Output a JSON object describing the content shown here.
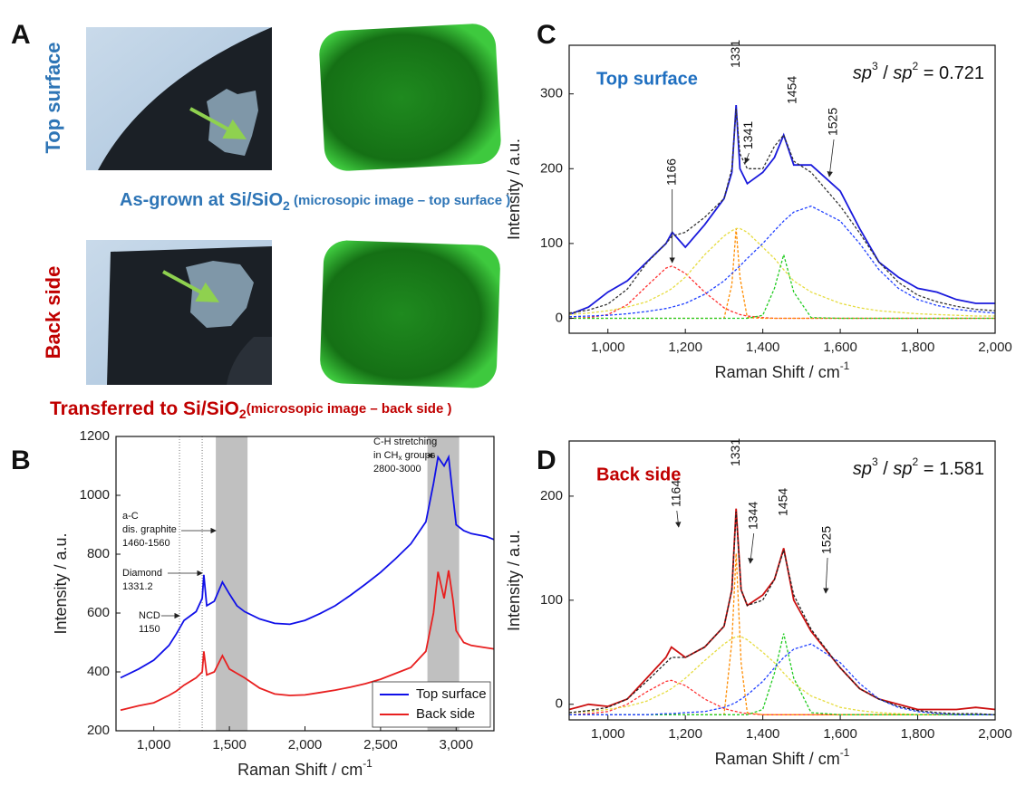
{
  "panel_a": {
    "letter": "A",
    "top_side_label": "Top surface",
    "top_caption": [
      "As-grown at Si/SiO",
      "2",
      " (microsopic image – top surface )"
    ],
    "back_side_label": "Back side",
    "back_caption": [
      "Transferred to Si/SiO",
      "2",
      "(microsopic image – back side )"
    ]
  },
  "chart_data": [
    {
      "type": "line",
      "panel": "B",
      "x_label": [
        "Raman Shift / cm",
        "-1"
      ],
      "y_label": "Intensity / a.u.",
      "x": [
        780,
        900,
        1000,
        1100,
        1150,
        1200,
        1280,
        1320,
        1331,
        1350,
        1400,
        1454,
        1500,
        1550,
        1600,
        1700,
        1800,
        1900,
        2000,
        2100,
        2200,
        2300,
        2400,
        2500,
        2600,
        2700,
        2800,
        2850,
        2880,
        2920,
        2950,
        2980,
        3000,
        3050,
        3100,
        3200,
        3250
      ],
      "series": [
        {
          "name": "Top surface",
          "color": "#1010e8",
          "style": "solid",
          "values": [
            380,
            410,
            440,
            490,
            530,
            575,
            605,
            650,
            730,
            625,
            640,
            705,
            665,
            625,
            605,
            580,
            565,
            562,
            575,
            598,
            625,
            660,
            698,
            738,
            785,
            835,
            910,
            1040,
            1130,
            1100,
            1130,
            990,
            900,
            880,
            870,
            860,
            850
          ]
        },
        {
          "name": "Back side",
          "color": "#e82020",
          "style": "solid",
          "values": [
            270,
            285,
            295,
            320,
            335,
            355,
            380,
            400,
            470,
            390,
            400,
            455,
            410,
            395,
            380,
            345,
            325,
            320,
            322,
            330,
            338,
            348,
            360,
            375,
            395,
            415,
            470,
            600,
            740,
            650,
            745,
            640,
            540,
            500,
            490,
            482,
            478
          ]
        }
      ],
      "xlim": [
        750,
        3250
      ],
      "xticks": [
        {
          "value": 1000,
          "label": "1,000"
        },
        {
          "value": 1500,
          "label": "1,500"
        },
        {
          "value": 2000,
          "label": "2,000"
        },
        {
          "value": 2500,
          "label": "2,500"
        },
        {
          "value": 3000,
          "label": "3,000"
        }
      ],
      "ylim": [
        200,
        1200
      ],
      "yticks": [
        200,
        400,
        600,
        800,
        1000,
        1200
      ],
      "shaded_bands": [
        [
          1410,
          1620
        ],
        [
          2810,
          3020
        ]
      ],
      "dotted_lines": [
        1170,
        1320
      ],
      "annotations": [
        {
          "lines": [
            "a-C",
            "dis. graphite",
            "1460-1560"
          ]
        },
        {
          "lines": [
            "Diamond",
            "1331.2"
          ]
        },
        {
          "lines": [
            "NCD",
            "1150"
          ]
        },
        {
          "lines": [
            "C-H  stretching",
            [
              "in CH",
              "x",
              " groups"
            ],
            "2800-3000"
          ]
        }
      ],
      "legend": "lower right"
    },
    {
      "type": "line",
      "panel": "C",
      "title": "Top surface",
      "title_color": "#1f6fc0",
      "ratio": [
        "sp",
        "3",
        " / ",
        "sp",
        "2",
        " = 0.721"
      ],
      "x_label": [
        "Raman Shift / cm",
        "-1"
      ],
      "y_label": "Intensity / a.u.",
      "x": [
        900,
        950,
        1000,
        1050,
        1100,
        1150,
        1166,
        1200,
        1250,
        1300,
        1320,
        1331,
        1341,
        1360,
        1400,
        1430,
        1454,
        1480,
        1525,
        1600,
        1650,
        1700,
        1750,
        1800,
        1850,
        1900,
        1950,
        2000
      ],
      "series": [
        {
          "color": "#1a1adc",
          "style": "solid",
          "values": [
            5,
            15,
            35,
            50,
            75,
            100,
            115,
            95,
            125,
            160,
            195,
            285,
            200,
            180,
            195,
            215,
            245,
            205,
            205,
            170,
            120,
            75,
            55,
            40,
            35,
            25,
            20,
            20
          ]
        },
        {
          "color": "#ff3030",
          "style": "dashed",
          "values": [
            0,
            1,
            5,
            18,
            43,
            67,
            70,
            60,
            35,
            14,
            9,
            7,
            5,
            3,
            1,
            0,
            0,
            0,
            0,
            0,
            0,
            0,
            0,
            0,
            0,
            0,
            0,
            0
          ]
        },
        {
          "color": "#ff8c00",
          "style": "dashed",
          "values": [
            0,
            0,
            0,
            0,
            0,
            0,
            0,
            0,
            0,
            0,
            45,
            120,
            55,
            1,
            0,
            0,
            0,
            0,
            0,
            0,
            0,
            0,
            0,
            0,
            0,
            0,
            0,
            0
          ]
        },
        {
          "color": "#e6dc40",
          "style": "dashed",
          "values": [
            5,
            7,
            10,
            15,
            22,
            35,
            40,
            55,
            85,
            110,
            117,
            120,
            120,
            115,
            95,
            80,
            65,
            50,
            35,
            20,
            14,
            10,
            8,
            6,
            5,
            4,
            3,
            3
          ]
        },
        {
          "color": "#22cc22",
          "style": "dashed",
          "values": [
            0,
            0,
            0,
            0,
            0,
            0,
            0,
            0,
            0,
            0,
            0,
            0,
            0,
            0,
            4,
            40,
            85,
            35,
            1,
            0,
            0,
            0,
            0,
            0,
            0,
            0,
            0,
            0
          ]
        },
        {
          "color": "#2040ff",
          "style": "dashed",
          "values": [
            2,
            3,
            4,
            6,
            9,
            13,
            15,
            20,
            32,
            50,
            60,
            65,
            70,
            80,
            100,
            117,
            130,
            142,
            150,
            130,
            100,
            65,
            40,
            25,
            17,
            12,
            9,
            7
          ]
        },
        {
          "color": "#333333",
          "style": "dashed",
          "values": [
            7,
            11,
            19,
            39,
            74,
            100,
            110,
            115,
            135,
            160,
            200,
            280,
            220,
            200,
            200,
            230,
            245,
            210,
            195,
            150,
            114,
            75,
            48,
            31,
            22,
            16,
            12,
            10
          ]
        }
      ],
      "xlim": [
        900,
        2000
      ],
      "xticks": [
        {
          "value": 1000,
          "label": "1,000"
        },
        {
          "value": 1200,
          "label": "1,200"
        },
        {
          "value": 1400,
          "label": "1,400"
        },
        {
          "value": 1600,
          "label": "1,600"
        },
        {
          "value": 1800,
          "label": "1,800"
        },
        {
          "value": 2000,
          "label": "2,000"
        }
      ],
      "ylim": [
        -20,
        365
      ],
      "yticks": [
        0,
        100,
        200,
        300
      ],
      "peak_labels": [
        1166,
        1331,
        1341,
        1454,
        1525
      ]
    },
    {
      "type": "line",
      "panel": "D",
      "title": "Back side",
      "title_color": "#c00000",
      "ratio": [
        "sp",
        "3",
        " / ",
        "sp",
        "2",
        " = 1.581"
      ],
      "x_label": [
        "Raman Shift / cm",
        "-1"
      ],
      "y_label": "Intensity / a.u.",
      "x": [
        900,
        950,
        1000,
        1050,
        1100,
        1150,
        1164,
        1200,
        1250,
        1300,
        1320,
        1331,
        1344,
        1360,
        1400,
        1430,
        1454,
        1480,
        1525,
        1600,
        1650,
        1700,
        1750,
        1800,
        1850,
        1900,
        1950,
        2000
      ],
      "series": [
        {
          "color": "#cc1010",
          "style": "solid",
          "values": [
            -5,
            0,
            -2,
            5,
            25,
            45,
            55,
            45,
            55,
            75,
            110,
            188,
            110,
            95,
            105,
            120,
            150,
            100,
            70,
            35,
            15,
            5,
            0,
            -5,
            -5,
            -5,
            -3,
            -5
          ]
        },
        {
          "color": "#ff3030",
          "style": "dashed",
          "values": [
            -10,
            -9,
            -7,
            0,
            12,
            22,
            23,
            18,
            5,
            -4,
            -6,
            -7,
            -8,
            -9,
            -10,
            -10,
            -10,
            -10,
            -10,
            -10,
            -10,
            -10,
            -10,
            -10,
            -10,
            -10,
            -10,
            -10
          ]
        },
        {
          "color": "#ff8c00",
          "style": "dashed",
          "values": [
            -10,
            -10,
            -10,
            -10,
            -10,
            -10,
            -10,
            -10,
            -10,
            -10,
            60,
            145,
            40,
            -8,
            -10,
            -10,
            -10,
            -10,
            -10,
            -10,
            -10,
            -10,
            -10,
            -10,
            -10,
            -10,
            -10,
            -10
          ]
        },
        {
          "color": "#e6dc40",
          "style": "dashed",
          "values": [
            -8,
            -7,
            -5,
            -2,
            3,
            12,
            15,
            25,
            42,
            58,
            63,
            65,
            65,
            62,
            50,
            40,
            30,
            20,
            8,
            -3,
            -6,
            -8,
            -9,
            -10,
            -10,
            -10,
            -10,
            -10
          ]
        },
        {
          "color": "#22cc22",
          "style": "dashed",
          "values": [
            -10,
            -10,
            -10,
            -10,
            -10,
            -10,
            -10,
            -10,
            -10,
            -10,
            -10,
            -10,
            -10,
            -10,
            -5,
            30,
            68,
            25,
            -8,
            -10,
            -10,
            -10,
            -10,
            -10,
            -10,
            -10,
            -10,
            -10
          ]
        },
        {
          "color": "#2040ff",
          "style": "dashed",
          "values": [
            -10,
            -10,
            -10,
            -10,
            -10,
            -9,
            -9,
            -8,
            -7,
            -3,
            0,
            2,
            5,
            9,
            22,
            35,
            45,
            53,
            58,
            40,
            20,
            5,
            -3,
            -7,
            -9,
            -10,
            -10,
            -10
          ]
        },
        {
          "color": "#222222",
          "style": "dashed",
          "values": [
            -8,
            -6,
            -3,
            5,
            22,
            40,
            45,
            45,
            55,
            75,
            110,
            185,
            110,
            95,
            100,
            120,
            148,
            105,
            72,
            35,
            15,
            5,
            -2,
            -6,
            -8,
            -9,
            -9,
            -10
          ]
        }
      ],
      "xlim": [
        900,
        2000
      ],
      "xticks": [
        {
          "value": 1000,
          "label": "1,000"
        },
        {
          "value": 1200,
          "label": "1,200"
        },
        {
          "value": 1400,
          "label": "1,400"
        },
        {
          "value": 1600,
          "label": "1,600"
        },
        {
          "value": 1800,
          "label": "1,800"
        },
        {
          "value": 2000,
          "label": "2,000"
        }
      ],
      "ylim": [
        -15,
        253
      ],
      "yticks": [
        0,
        100,
        200
      ],
      "peak_labels": [
        1164,
        1331,
        1344,
        1454,
        1525
      ]
    }
  ]
}
